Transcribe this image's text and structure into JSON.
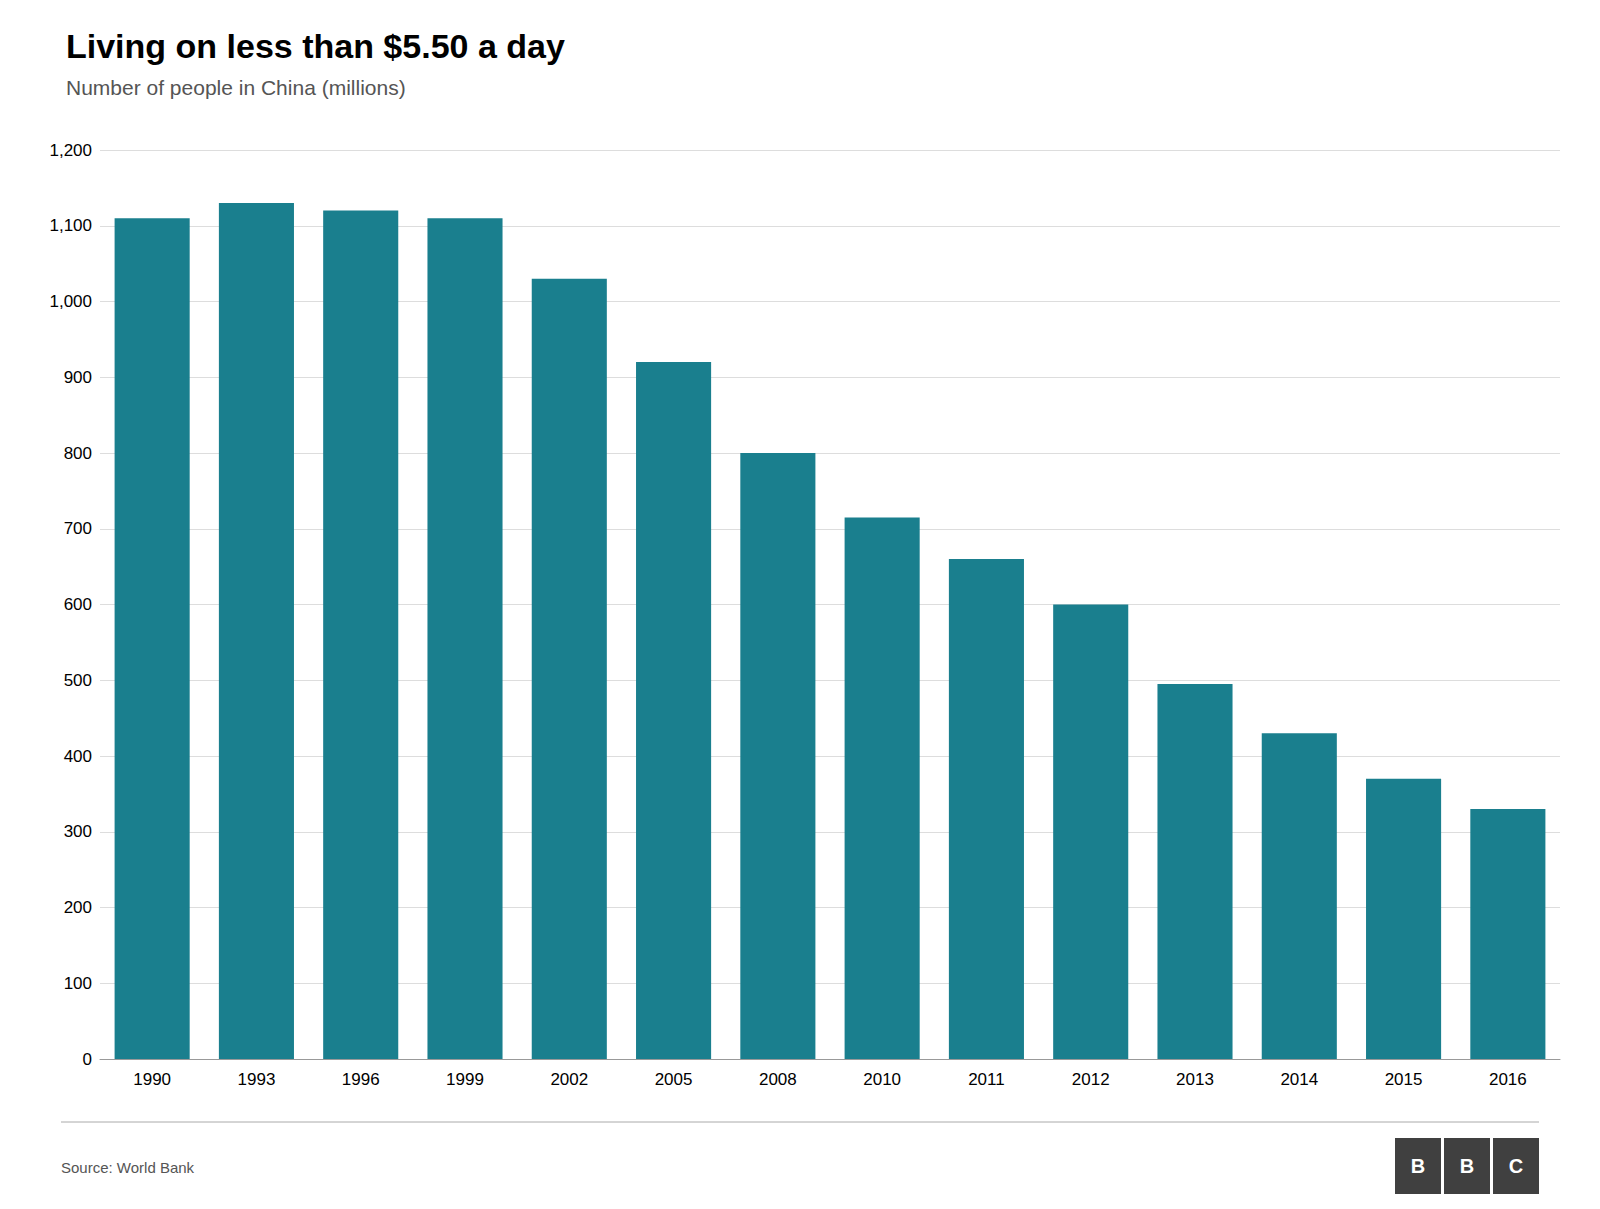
{
  "chart_data": {
    "type": "bar",
    "title": "Living on less than $5.50 a day",
    "subtitle": "Number of people in China (millions)",
    "source": "Source: World Bank",
    "categories": [
      "1990",
      "1993",
      "1996",
      "1999",
      "2002",
      "2005",
      "2008",
      "2010",
      "2011",
      "2012",
      "2013",
      "2014",
      "2015",
      "2016"
    ],
    "values": [
      1110,
      1130,
      1120,
      1110,
      1030,
      920,
      800,
      715,
      660,
      600,
      495,
      430,
      370,
      330
    ],
    "color": "#1a7f8e",
    "ylim": [
      0,
      1200
    ],
    "yticks": [
      0,
      100,
      200,
      300,
      400,
      500,
      600,
      700,
      800,
      900,
      {
        "value": 1000,
        "label": "1,000"
      },
      {
        "value": 1100,
        "label": "1,100"
      },
      {
        "value": 1200,
        "label": "1,200"
      }
    ],
    "grid": true,
    "logo": {
      "letters": [
        "B",
        "B",
        "C"
      ],
      "color": "#404040"
    }
  }
}
